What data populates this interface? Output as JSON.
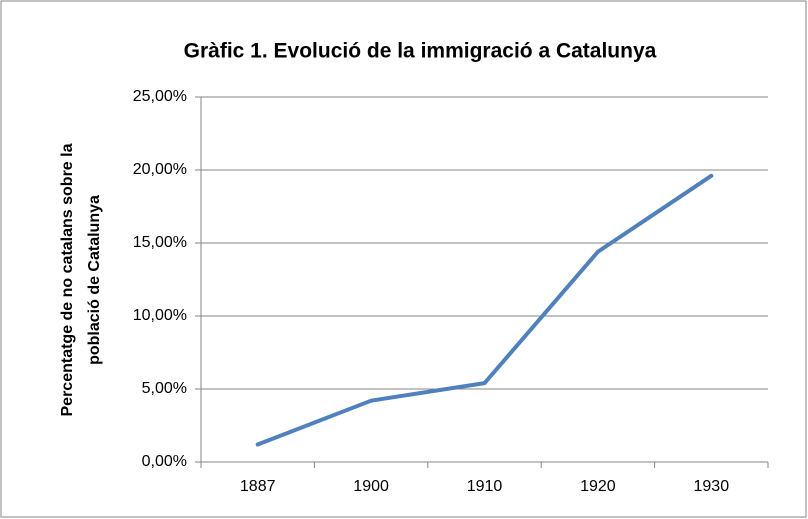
{
  "chart_data": {
    "type": "line",
    "title": "Gràfic 1. Evolució de la immigració a Catalunya",
    "ylabel": [
      "Percentatge de no catalans sobre la",
      "població de Catalunya"
    ],
    "categories": [
      "1887",
      "1900",
      "1910",
      "1920",
      "1930"
    ],
    "series": [
      {
        "name": "Percentatge de no catalans",
        "color": "#4f81bd",
        "values": [
          1.2,
          4.2,
          5.4,
          14.4,
          19.6
        ]
      }
    ],
    "ylim": [
      0,
      25
    ],
    "yticks": [
      {
        "value": 0,
        "label": "0,00%"
      },
      {
        "value": 5,
        "label": "5,00%"
      },
      {
        "value": 10,
        "label": "10,00%"
      },
      {
        "value": 15,
        "label": "15,00%"
      },
      {
        "value": 20,
        "label": "20,00%"
      },
      {
        "value": 25,
        "label": "25,00%"
      }
    ],
    "grid": true
  }
}
